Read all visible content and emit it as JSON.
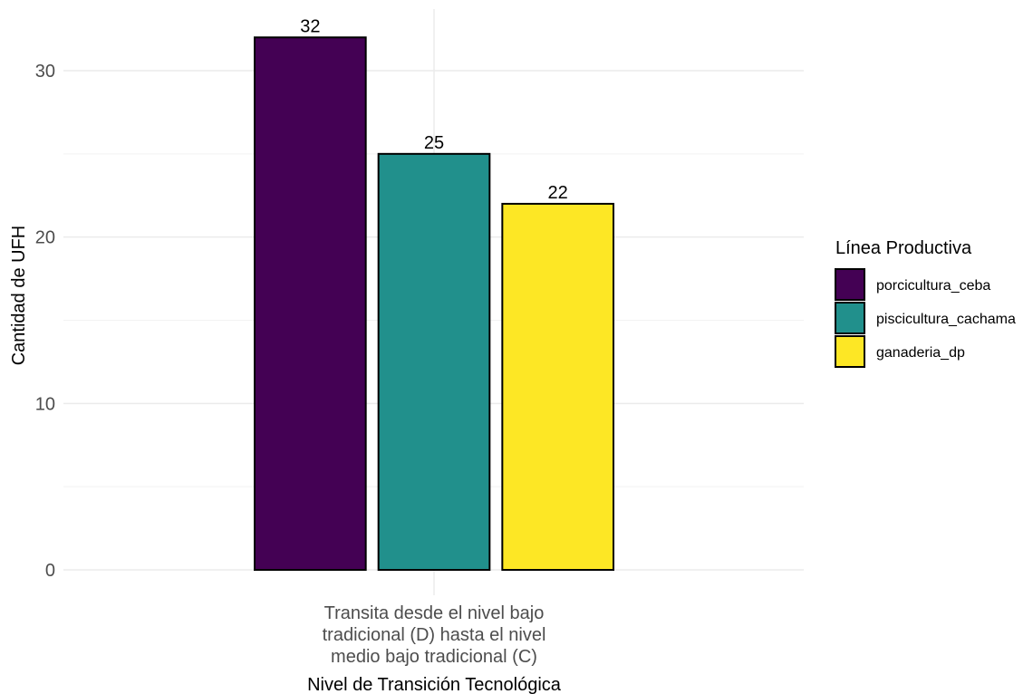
{
  "chart_data": {
    "type": "bar",
    "categories": [
      "Transita desde el nivel bajo tradicional (D) hasta el nivel medio bajo tradicional (C)"
    ],
    "category_label_lines": [
      "Transita desde el nivel bajo",
      "tradicional (D) hasta el nivel",
      "medio bajo tradicional (C)"
    ],
    "series": [
      {
        "name": "porcicultura_ceba",
        "values": [
          32
        ],
        "color": "#440154"
      },
      {
        "name": "piscicultura_cachama",
        "values": [
          25
        ],
        "color": "#21908C"
      },
      {
        "name": "ganaderia_dp",
        "values": [
          22
        ],
        "color": "#FDE725"
      }
    ],
    "title": "",
    "xlabel": "Nivel de Transición Tecnológica",
    "ylabel": "Cantidad de UFH",
    "ylim": [
      0,
      32
    ],
    "yticks": [
      0,
      10,
      20,
      30
    ],
    "grid": true,
    "legend": {
      "title": "Línea Productiva",
      "position": "right"
    }
  }
}
